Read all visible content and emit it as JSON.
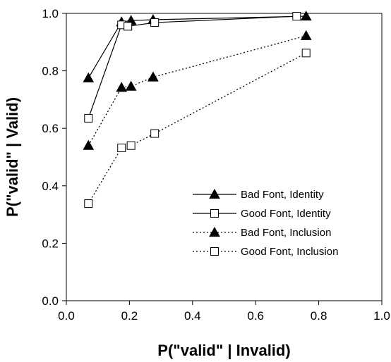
{
  "chart_data": {
    "type": "line",
    "title": "",
    "xlabel": "P(\"valid\" | Invalid)",
    "ylabel": "P(\"valid\" | Valid)",
    "xlim": [
      0.0,
      1.0
    ],
    "ylim": [
      0.0,
      1.0
    ],
    "x_ticks": [
      "0.0",
      "0.2",
      "0.4",
      "0.6",
      "0.8",
      "1.0"
    ],
    "y_ticks": [
      "0.0",
      "0.2",
      "0.4",
      "0.6",
      "0.8",
      "1.0"
    ],
    "grid": false,
    "legend_position": "bottom-right",
    "series": [
      {
        "name": "Bad Font, Identity",
        "line": "solid",
        "marker": "filled-triangle",
        "points": [
          [
            0.07,
            0.775
          ],
          [
            0.175,
            0.97
          ],
          [
            0.205,
            0.975
          ],
          [
            0.275,
            0.978
          ],
          [
            0.76,
            0.99
          ]
        ]
      },
      {
        "name": "Good Font, Identity",
        "line": "solid",
        "marker": "open-square",
        "points": [
          [
            0.07,
            0.635
          ],
          [
            0.175,
            0.96
          ],
          [
            0.195,
            0.955
          ],
          [
            0.28,
            0.968
          ],
          [
            0.73,
            0.99
          ]
        ]
      },
      {
        "name": "Bad Font, Inclusion",
        "line": "dotted",
        "marker": "filled-triangle",
        "points": [
          [
            0.07,
            0.54
          ],
          [
            0.175,
            0.742
          ],
          [
            0.205,
            0.746
          ],
          [
            0.275,
            0.778
          ],
          [
            0.76,
            0.922
          ]
        ]
      },
      {
        "name": "Good Font, Inclusion",
        "line": "dotted",
        "marker": "open-square",
        "points": [
          [
            0.07,
            0.338
          ],
          [
            0.175,
            0.532
          ],
          [
            0.205,
            0.54
          ],
          [
            0.28,
            0.582
          ],
          [
            0.76,
            0.862
          ]
        ]
      }
    ]
  }
}
